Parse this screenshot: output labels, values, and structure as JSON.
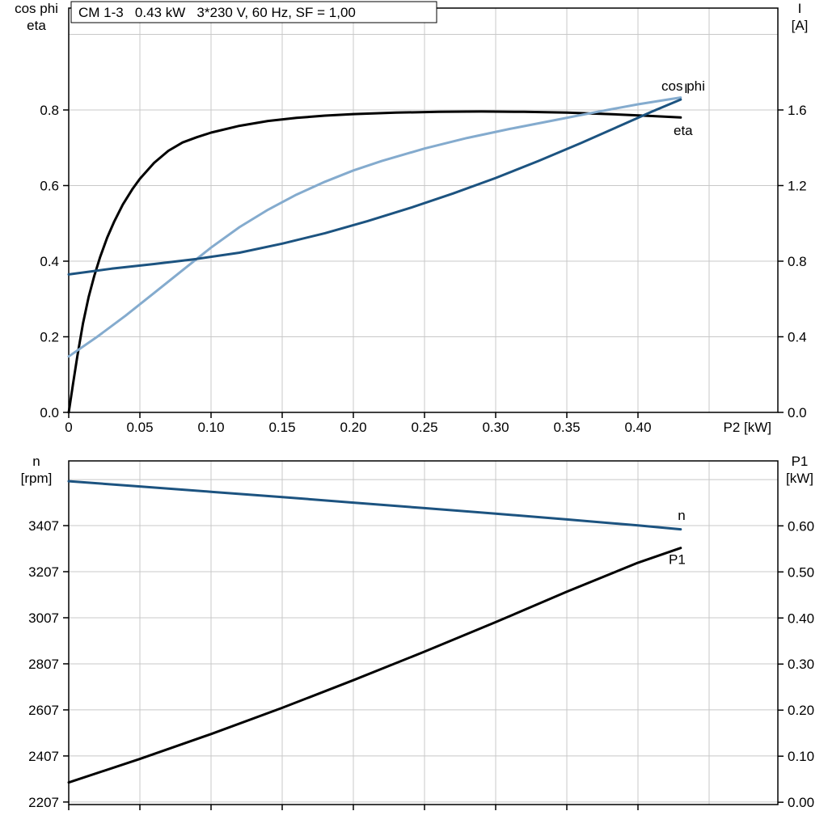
{
  "colors": {
    "black": "#000000",
    "dark_blue": "#1c5380",
    "light_blue": "#84abce",
    "grid": "#c8c8c8",
    "frame": "#000000",
    "background": "#ffffff"
  },
  "chart_data": [
    {
      "type": "line",
      "name": "electrical",
      "title": "CM 1-3   0.43 kW   3*230 V, 60 Hz, SF = 1,00",
      "x_axis": {
        "label": "P2 [kW]",
        "range": [
          0,
          0.4983
        ],
        "grid": [
          0.05,
          0.1,
          0.15,
          0.2,
          0.25,
          0.3,
          0.35,
          0.4,
          0.45
        ],
        "ticks": [
          {
            "v": 0,
            "t": "0"
          },
          {
            "v": 0.05,
            "t": "0.05"
          },
          {
            "v": 0.1,
            "t": "0.10"
          },
          {
            "v": 0.15,
            "t": "0.15"
          },
          {
            "v": 0.2,
            "t": "0.20"
          },
          {
            "v": 0.25,
            "t": "0.25"
          },
          {
            "v": 0.3,
            "t": "0.30"
          },
          {
            "v": 0.35,
            "t": "0.35"
          },
          {
            "v": 0.4,
            "t": "0.40"
          }
        ]
      },
      "left_axis": {
        "label_lines": [
          "cos phi",
          "eta"
        ],
        "range": [
          0,
          1.0695
        ],
        "grid": [
          0.2,
          0.4,
          0.6,
          0.8,
          1.0
        ],
        "ticks": [
          {
            "v": 0.0,
            "t": "0.0"
          },
          {
            "v": 0.2,
            "t": "0.2"
          },
          {
            "v": 0.4,
            "t": "0.4"
          },
          {
            "v": 0.6,
            "t": "0.6"
          },
          {
            "v": 0.8,
            "t": "0.8"
          }
        ]
      },
      "right_axis": {
        "label_lines": [
          "I",
          "[A]"
        ],
        "range": [
          0,
          2.139
        ],
        "ticks": [
          {
            "v": 0.0,
            "t": "0.0"
          },
          {
            "v": 0.4,
            "t": "0.4"
          },
          {
            "v": 0.8,
            "t": "0.8"
          },
          {
            "v": 1.2,
            "t": "1.2"
          },
          {
            "v": 1.6,
            "t": "1.6"
          }
        ]
      },
      "series": [
        {
          "name": "eta",
          "axis": "left",
          "color_key": "black",
          "width": 3,
          "label": {
            "text": "eta",
            "x": 0.425,
            "y": 0.734
          },
          "points": [
            [
              0,
              0
            ],
            [
              0.003,
              0.075
            ],
            [
              0.006,
              0.148
            ],
            [
              0.01,
              0.235
            ],
            [
              0.014,
              0.305
            ],
            [
              0.018,
              0.362
            ],
            [
              0.022,
              0.41
            ],
            [
              0.027,
              0.462
            ],
            [
              0.032,
              0.505
            ],
            [
              0.038,
              0.55
            ],
            [
              0.045,
              0.592
            ],
            [
              0.05,
              0.618
            ],
            [
              0.06,
              0.66
            ],
            [
              0.07,
              0.692
            ],
            [
              0.08,
              0.714
            ],
            [
              0.09,
              0.728
            ],
            [
              0.1,
              0.74
            ],
            [
              0.12,
              0.758
            ],
            [
              0.14,
              0.771
            ],
            [
              0.16,
              0.779
            ],
            [
              0.18,
              0.785
            ],
            [
              0.2,
              0.789
            ],
            [
              0.23,
              0.793
            ],
            [
              0.26,
              0.795
            ],
            [
              0.29,
              0.796
            ],
            [
              0.32,
              0.795
            ],
            [
              0.35,
              0.793
            ],
            [
              0.38,
              0.789
            ],
            [
              0.41,
              0.784
            ],
            [
              0.43,
              0.78
            ]
          ]
        },
        {
          "name": "cos-phi",
          "axis": "left",
          "color_key": "light_blue",
          "width": 3,
          "label": {
            "text": "cos phi",
            "x": 0.4165,
            "y": 0.851
          },
          "points": [
            [
              0,
              0.148
            ],
            [
              0.02,
              0.2
            ],
            [
              0.04,
              0.256
            ],
            [
              0.06,
              0.316
            ],
            [
              0.08,
              0.376
            ],
            [
              0.1,
              0.436
            ],
            [
              0.12,
              0.49
            ],
            [
              0.14,
              0.536
            ],
            [
              0.16,
              0.576
            ],
            [
              0.18,
              0.61
            ],
            [
              0.2,
              0.64
            ],
            [
              0.22,
              0.665
            ],
            [
              0.25,
              0.698
            ],
            [
              0.28,
              0.726
            ],
            [
              0.31,
              0.75
            ],
            [
              0.34,
              0.772
            ],
            [
              0.37,
              0.794
            ],
            [
              0.4,
              0.815
            ],
            [
              0.42,
              0.827
            ],
            [
              0.43,
              0.833
            ]
          ]
        },
        {
          "name": "current",
          "axis": "right",
          "color_key": "dark_blue",
          "width": 3,
          "label": {
            "text": "I",
            "x": 0.4324,
            "y": 1.69
          },
          "points": [
            [
              0,
              0.73
            ],
            [
              0.03,
              0.76
            ],
            [
              0.06,
              0.785
            ],
            [
              0.09,
              0.812
            ],
            [
              0.12,
              0.845
            ],
            [
              0.15,
              0.893
            ],
            [
              0.18,
              0.948
            ],
            [
              0.21,
              1.012
            ],
            [
              0.24,
              1.082
            ],
            [
              0.27,
              1.158
            ],
            [
              0.3,
              1.24
            ],
            [
              0.33,
              1.33
            ],
            [
              0.36,
              1.425
            ],
            [
              0.39,
              1.525
            ],
            [
              0.41,
              1.592
            ],
            [
              0.43,
              1.655
            ]
          ]
        }
      ]
    },
    {
      "type": "line",
      "name": "speed-power",
      "title": "",
      "x_axis": {
        "label": "",
        "range": [
          0,
          0.4983
        ],
        "grid": [
          0.05,
          0.1,
          0.15,
          0.2,
          0.25,
          0.3,
          0.35,
          0.4,
          0.45
        ],
        "ticks": [
          {
            "v": 0,
            "t": ""
          },
          {
            "v": 0.05,
            "t": ""
          },
          {
            "v": 0.1,
            "t": ""
          },
          {
            "v": 0.15,
            "t": ""
          },
          {
            "v": 0.2,
            "t": ""
          },
          {
            "v": 0.25,
            "t": ""
          },
          {
            "v": 0.3,
            "t": ""
          },
          {
            "v": 0.35,
            "t": ""
          },
          {
            "v": 0.4,
            "t": ""
          }
        ]
      },
      "left_axis": {
        "label_lines": [
          "n",
          "[rpm]"
        ],
        "range": [
          2196,
          3688
        ],
        "grid": [
          2207,
          2407,
          2607,
          2807,
          3007,
          3207,
          3407,
          3607
        ],
        "ticks": [
          {
            "v": 2207,
            "t": "2207"
          },
          {
            "v": 2407,
            "t": "2407"
          },
          {
            "v": 2607,
            "t": "2607"
          },
          {
            "v": 2807,
            "t": "2807"
          },
          {
            "v": 3007,
            "t": "3007"
          },
          {
            "v": 3207,
            "t": "3207"
          },
          {
            "v": 3407,
            "t": "3407"
          }
        ]
      },
      "right_axis": {
        "label_lines": [
          "P1",
          "[kW]"
        ],
        "range": [
          -0.005,
          0.741
        ],
        "ticks": [
          {
            "v": 0.0,
            "t": "0.00"
          },
          {
            "v": 0.1,
            "t": "0.10"
          },
          {
            "v": 0.2,
            "t": "0.20"
          },
          {
            "v": 0.3,
            "t": "0.30"
          },
          {
            "v": 0.4,
            "t": "0.40"
          },
          {
            "v": 0.5,
            "t": "0.50"
          },
          {
            "v": 0.6,
            "t": "0.60"
          }
        ]
      },
      "series": [
        {
          "name": "speed",
          "axis": "left",
          "color_key": "dark_blue",
          "width": 3,
          "label": {
            "text": "n",
            "x": 0.428,
            "y": 3432
          },
          "points": [
            [
              0,
              3600
            ],
            [
              0.05,
              3577
            ],
            [
              0.1,
              3554
            ],
            [
              0.15,
              3531
            ],
            [
              0.2,
              3507
            ],
            [
              0.25,
              3483
            ],
            [
              0.3,
              3459
            ],
            [
              0.35,
              3434
            ],
            [
              0.4,
              3408
            ],
            [
              0.43,
              3391
            ]
          ]
        },
        {
          "name": "input-power",
          "axis": "right",
          "color_key": "black",
          "width": 3,
          "label": {
            "text": "P1",
            "x": 0.4216,
            "y": 0.5175
          },
          "points": [
            [
              0,
              0.043
            ],
            [
              0.05,
              0.094
            ],
            [
              0.1,
              0.148
            ],
            [
              0.15,
              0.205
            ],
            [
              0.2,
              0.265
            ],
            [
              0.25,
              0.327
            ],
            [
              0.3,
              0.391
            ],
            [
              0.35,
              0.457
            ],
            [
              0.4,
              0.52
            ],
            [
              0.43,
              0.552
            ]
          ]
        }
      ]
    }
  ]
}
